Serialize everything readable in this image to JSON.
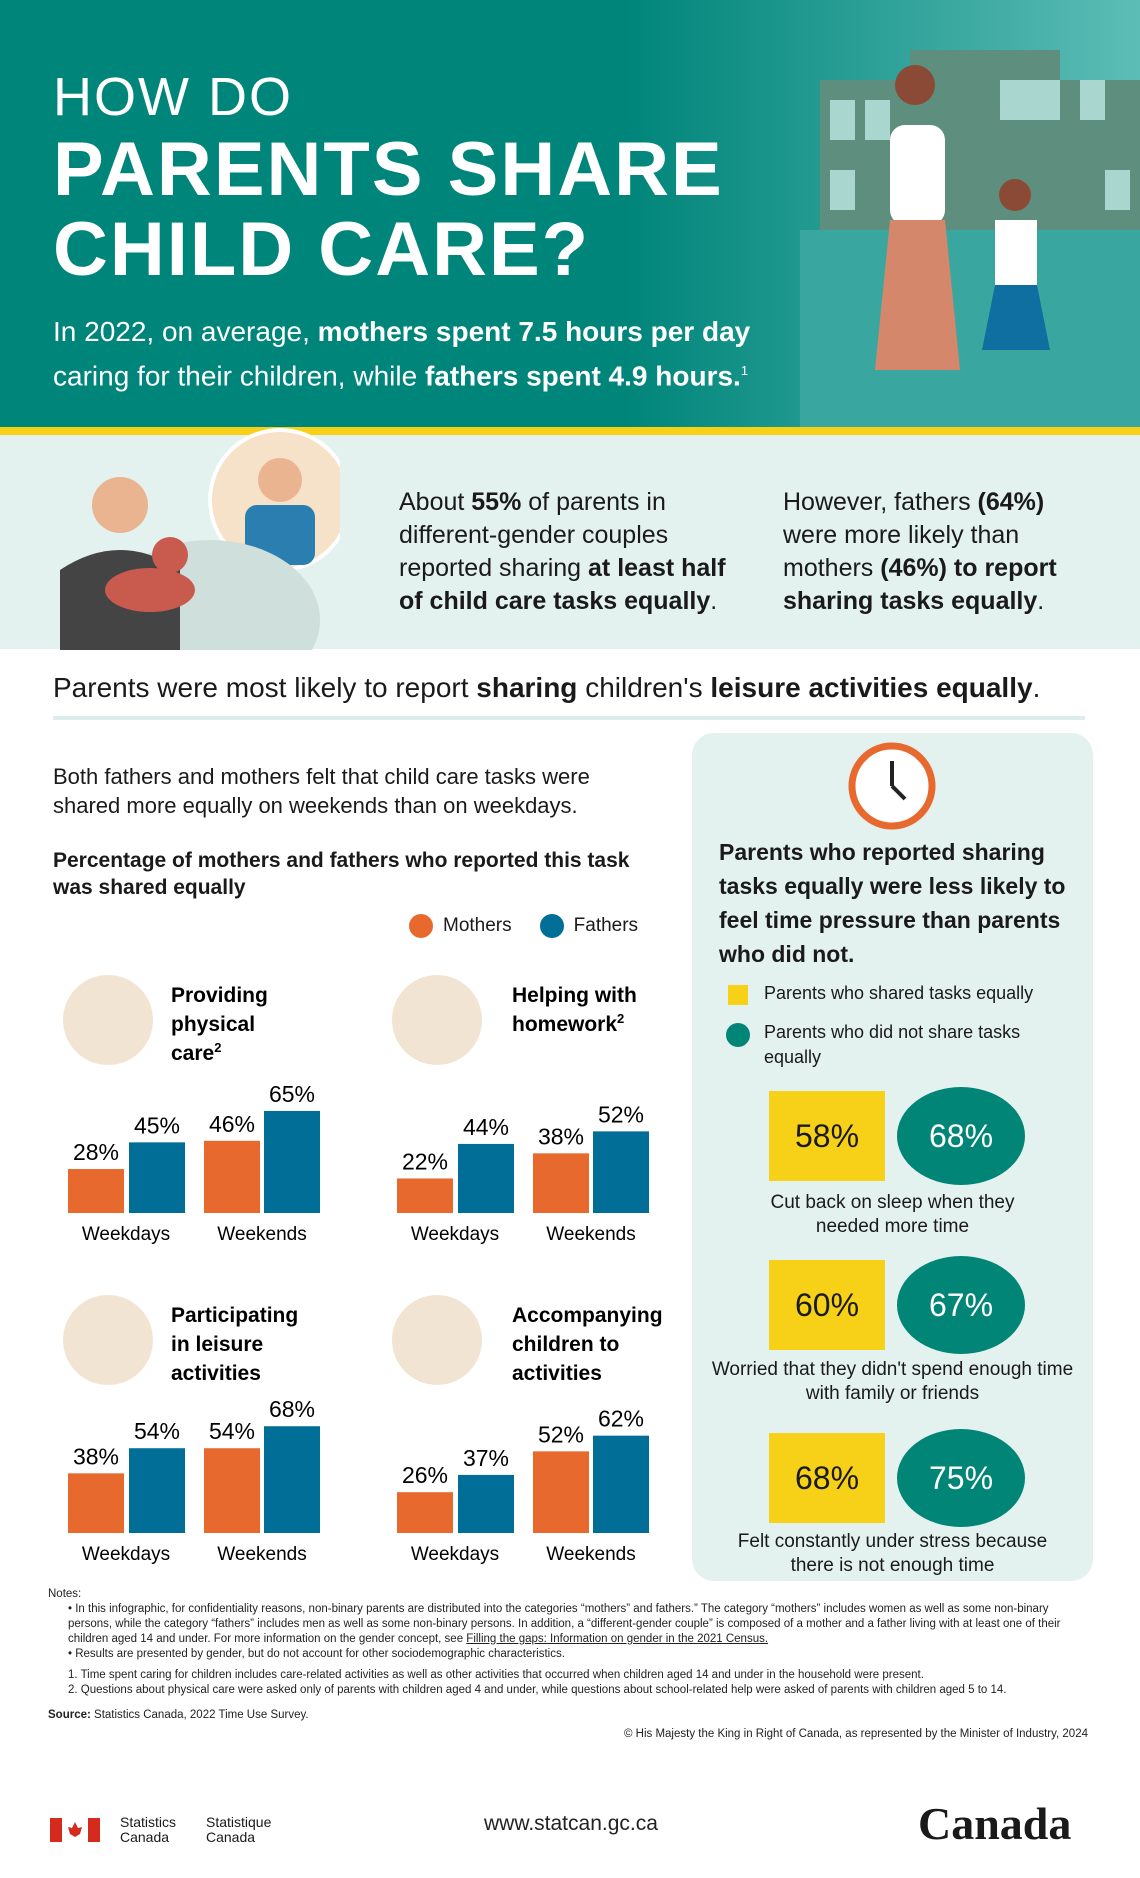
{
  "header": {
    "line1": "HOW DO",
    "line2": "PARENTS SHARE",
    "line3": "CHILD CARE?",
    "intro_a": "In 2022, on average, ",
    "intro_b": "mothers spent 7.5 hours per day",
    "intro_c": "caring for their children, while ",
    "intro_d": "fathers spent 4.9 hours.",
    "intro_sup": "1"
  },
  "band": {
    "left": [
      "About ",
      "55%",
      " of parents in different-gender couples reported sharing ",
      "at least half of child care tasks equally",
      "."
    ],
    "right": [
      "However, fathers ",
      "(64%)",
      " were more likely than mothers ",
      "(46%) to report sharing tasks equally",
      "."
    ]
  },
  "headline": [
    "Parents were most likely to report ",
    "sharing",
    " children's ",
    "leisure activities equally",
    "."
  ],
  "left_text": "Both fathers and mothers felt that child care tasks were shared more equally on weekends than on weekdays.",
  "colors": {
    "mothers": "#e8692e",
    "fathers": "#006e96",
    "teal": "#00857a",
    "yellow": "#f7d117"
  },
  "chart_data": {
    "type": "bar",
    "title": "Percentage of mothers and fathers who reported this task was shared equally",
    "legend": [
      "Mothers",
      "Fathers"
    ],
    "categories": [
      "Weekdays",
      "Weekends"
    ],
    "ylim": [
      0,
      100
    ],
    "panels": [
      {
        "title": "Providing physical care",
        "sup": "2",
        "series": [
          {
            "name": "Mothers",
            "values": [
              28,
              46
            ]
          },
          {
            "name": "Fathers",
            "values": [
              45,
              65
            ]
          }
        ]
      },
      {
        "title": "Helping with homework",
        "sup": "2",
        "series": [
          {
            "name": "Mothers",
            "values": [
              22,
              38
            ]
          },
          {
            "name": "Fathers",
            "values": [
              44,
              52
            ]
          }
        ]
      },
      {
        "title": "Participating in leisure activities",
        "sup": "",
        "series": [
          {
            "name": "Mothers",
            "values": [
              38,
              54
            ]
          },
          {
            "name": "Fathers",
            "values": [
              54,
              68
            ]
          }
        ]
      },
      {
        "title": "Accompanying children to activities",
        "sup": "",
        "series": [
          {
            "name": "Mothers",
            "values": [
              26,
              52
            ]
          },
          {
            "name": "Fathers",
            "values": [
              37,
              62
            ]
          }
        ]
      }
    ]
  },
  "right_panel": {
    "title": "Parents who reported sharing tasks equally were less likely to feel time pressure than parents who did not.",
    "legend_shared": "Parents who shared tasks equally",
    "legend_not": "Parents who did not share tasks equally",
    "items": [
      {
        "shared": "58%",
        "not": "68%",
        "caption": "Cut back on sleep when they needed more time"
      },
      {
        "shared": "60%",
        "not": "67%",
        "caption": "Worried that they didn't spend enough time with family or friends"
      },
      {
        "shared": "68%",
        "not": "75%",
        "caption": "Felt constantly under stress because there is not enough time"
      }
    ]
  },
  "notes": {
    "heading": "Notes:",
    "b1": "In this infographic, for confidentiality reasons, non-binary parents are distributed into the categories “mothers” and fathers.” The category “mothers” includes women as well as some non-binary persons, while the category “fathers” includes men as well as some non-binary persons. In addition, a “different-gender couple” is composed of a mother and a father living with at least one of their children aged 14 and under. For more information on the gender concept, see ",
    "b1_link": "Filling the gaps: Information on gender in the 2021 Census.",
    "b2": "Results are presented by gender, but do not account for other sociodemographic characteristics.",
    "n1": "Time spent caring for children includes care-related activities as well as other activities that occurred when children aged 14 and under in the household were present.",
    "n2": "Questions about physical care were asked only of parents with children aged 4 and under, while questions about school-related help were asked of parents with children aged 5 to 14.",
    "source_label": "Source:",
    "source": " Statistics Canada, 2022 Time Use Survey.",
    "copyright": "© His Majesty the King in Right of Canada, as represented by the Minister of Industry, 2024"
  },
  "footer": {
    "sc_en": "Statistics Canada",
    "sc_fr": "Statistique Canada",
    "url": "www.statcan.gc.ca",
    "wordmark": "Canada"
  }
}
